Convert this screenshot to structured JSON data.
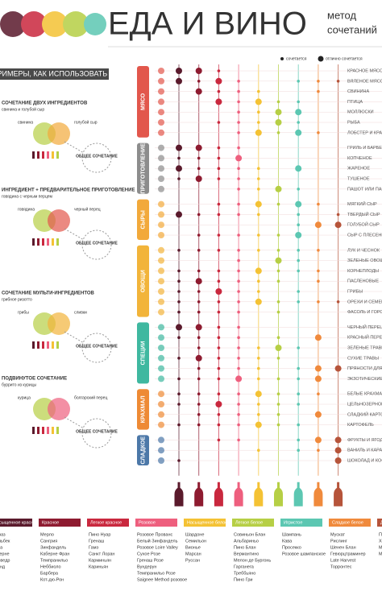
{
  "header": {
    "title": "ЕДА И ВИНО",
    "subtitle_line1": "метод",
    "subtitle_line2": "сочетаний"
  },
  "legend": {
    "pairs": "сочетается",
    "excellent": "отлично сочетается"
  },
  "examples_header": "ПРИМЕРЫ, КАК ИСПОЛЬЗОВАТЬ",
  "examples": [
    {
      "title": "СОЧЕТАНИЕ ДВУХ ИНГРЕДИЕНТОВ",
      "subtitle": "свинина и голубой сыр",
      "left": "свинина",
      "right": "голубой сыр",
      "result": "ОБЩЕЕ СОЧЕТАНИЕ"
    },
    {
      "title": "ИНГРЕДИЕНТ + ПРЕДВАРИТЕЛЬНОЕ ПРИГОТОВЛЕНИЕ",
      "subtitle": "говядина с черным перцем",
      "left": "говядина",
      "right": "черный перец",
      "result": "ОБЩЕЕ СОЧЕТАНИЕ"
    },
    {
      "title": "СОЧЕТАНИЕ МУЛЬТИ-ИНГРЕДИЕНТОВ",
      "subtitle": "грибное ризотто",
      "left": "грибы",
      "right": "сливки",
      "result": "ОБЩЕЕ СОЧЕТАНИЕ"
    },
    {
      "title": "ПОДВИНУТОЕ СОЧЕТАНИЕ",
      "subtitle": "буррито из курицы",
      "left": "курица",
      "right": "болгарский перец",
      "result": "ОБЩЕЕ СОЧЕТАНИЕ"
    }
  ],
  "groups": [
    {
      "name": "МЯСО",
      "color": "#e2574c",
      "rows": 7
    },
    {
      "name": "ПРИГОТОВЛЕНИЕ",
      "color": "#8c8c8c",
      "rows": 5
    },
    {
      "name": "СЫРЫ",
      "color": "#f2a93b",
      "rows": 4
    },
    {
      "name": "ОВОЩИ",
      "color": "#f2b43a",
      "rows": 7
    },
    {
      "name": "СПЕЦИИ",
      "color": "#3fb8a0",
      "rows": 6
    },
    {
      "name": "КРАХМАЛ",
      "color": "#ee8a35",
      "rows": 4
    },
    {
      "name": "СЛАДКОЕ",
      "color": "#4c78a8",
      "rows": 3
    }
  ],
  "foods": [
    "КРАСНОЕ МЯСО",
    "ВЯЛЕНОЕ МЯСО",
    "СВИНИНА",
    "ПТИЦА",
    "МОЛЛЮСКИ",
    "РЫБА",
    "ЛОБСТЕР И КРАБ",
    "ГРИЛЬ И БАРБЕКЮ",
    "КОПЧЕНОЕ",
    "ЖАРЕНОЕ",
    "ТУШЕНОЕ",
    "ПАШОТ ИЛИ ПАР",
    "МЯГКИЙ СЫР",
    "ТВЕРДЫЙ СЫР",
    "ГОЛУБОЙ СЫР",
    "СЫР С ПЛЕСЕНЬЮ",
    "ЛУК И ЧЕСНОК",
    "ЗЕЛЕНЫЕ ОВОЩИ",
    "КОРНЕПЛОДЫ",
    "ПАСЛЕНОВЫЕ",
    "ГРИБЫ",
    "ОРЕХИ И СЕМЕНА",
    "ФАСОЛЬ И ГОРОХ",
    "ЧЕРНЫЙ ПЕРЕЦ",
    "КРАСНЫЙ ПЕРЕЦ",
    "ЗЕЛЕНЫЕ ТРАВЫ",
    "СУХИЕ ТРАВЫ",
    "ПРЯНОСТИ ДЛЯ ВЫПЕЧКИ",
    "ЭКЗОТИЧЕСКИЕ ПРЯНОСТИ",
    "БЕЛЫЕ КРАХМАЛЫ",
    "ЦЕЛЬНОЗЕРНОВЫЕ",
    "СЛАДКИЙ КАРТОФЕЛЬ",
    "КАРТОФЕЛЬ",
    "ФРУКТЫ И ЯГОДЫ",
    "ВАНИЛЬ И КАРАМЕЛЬ",
    "ШОКОЛАД И КОФЕ"
  ],
  "matrix": [
    [
      2,
      2,
      1,
      0,
      0,
      0,
      0,
      0,
      0
    ],
    [
      2,
      1,
      2,
      1,
      0,
      0,
      1,
      1,
      1
    ],
    [
      0,
      2,
      1,
      1,
      1,
      0,
      0,
      1,
      0
    ],
    [
      0,
      0,
      2,
      1,
      2,
      1,
      1,
      0,
      0
    ],
    [
      0,
      0,
      0,
      1,
      1,
      2,
      2,
      0,
      0
    ],
    [
      0,
      0,
      1,
      1,
      1,
      2,
      1,
      0,
      0
    ],
    [
      0,
      0,
      0,
      1,
      2,
      1,
      2,
      1,
      0
    ],
    [
      2,
      2,
      1,
      1,
      0,
      0,
      0,
      0,
      0
    ],
    [
      1,
      1,
      1,
      2,
      0,
      0,
      0,
      0,
      0
    ],
    [
      2,
      1,
      1,
      1,
      1,
      0,
      2,
      0,
      0
    ],
    [
      1,
      2,
      1,
      1,
      1,
      0,
      0,
      0,
      0
    ],
    [
      0,
      0,
      0,
      1,
      1,
      2,
      1,
      0,
      0
    ],
    [
      0,
      0,
      1,
      1,
      2,
      1,
      2,
      1,
      0
    ],
    [
      2,
      1,
      1,
      1,
      1,
      0,
      1,
      0,
      1
    ],
    [
      0,
      0,
      0,
      0,
      0,
      0,
      1,
      2,
      2
    ],
    [
      0,
      1,
      1,
      1,
      1,
      1,
      2,
      0,
      0
    ],
    [
      1,
      1,
      1,
      1,
      1,
      1,
      1,
      1,
      0
    ],
    [
      0,
      0,
      0,
      1,
      0,
      2,
      1,
      0,
      0
    ],
    [
      1,
      1,
      1,
      1,
      2,
      1,
      1,
      1,
      0
    ],
    [
      1,
      2,
      1,
      1,
      1,
      1,
      0,
      1,
      0
    ],
    [
      1,
      1,
      2,
      1,
      1,
      0,
      1,
      0,
      0
    ],
    [
      1,
      1,
      1,
      1,
      2,
      1,
      1,
      1,
      1
    ],
    [
      1,
      1,
      1,
      1,
      0,
      1,
      0,
      0,
      0
    ],
    [
      2,
      2,
      1,
      1,
      0,
      0,
      0,
      0,
      0
    ],
    [
      1,
      1,
      1,
      1,
      0,
      1,
      0,
      2,
      0
    ],
    [
      0,
      1,
      1,
      1,
      1,
      2,
      1,
      0,
      0
    ],
    [
      1,
      2,
      1,
      1,
      1,
      1,
      0,
      0,
      0
    ],
    [
      0,
      1,
      1,
      1,
      1,
      0,
      1,
      2,
      2
    ],
    [
      1,
      1,
      1,
      2,
      1,
      1,
      1,
      2,
      0
    ],
    [
      1,
      1,
      1,
      1,
      2,
      1,
      1,
      1,
      0
    ],
    [
      1,
      1,
      2,
      1,
      1,
      1,
      1,
      0,
      0
    ],
    [
      0,
      1,
      1,
      1,
      1,
      1,
      0,
      2,
      0
    ],
    [
      1,
      1,
      1,
      1,
      2,
      1,
      1,
      0,
      0
    ],
    [
      0,
      0,
      1,
      1,
      0,
      0,
      1,
      2,
      2
    ],
    [
      0,
      0,
      0,
      0,
      1,
      0,
      1,
      1,
      2
    ],
    [
      1,
      0,
      0,
      0,
      0,
      0,
      0,
      0,
      2
    ]
  ],
  "wines": [
    {
      "name": "Насыщенное красное",
      "color": "#5a1a2c",
      "grapes": [
        "Шираз",
        "Мальбек",
        "Сира",
        "Каберне",
        "Мурведр",
        "Бланд"
      ]
    },
    {
      "name": "Красное",
      "color": "#8e1b30",
      "grapes": [
        "Мерло",
        "Сангрия",
        "Зинфандель",
        "Каберне Фран",
        "Темпранильо",
        "Неббиоло",
        "Барбера",
        "Кот-дю-Рон"
      ]
    },
    {
      "name": "Легкое красное",
      "color": "#c9283e",
      "grapes": [
        "Пино Нуар",
        "Гренаш",
        "Гамэ",
        "Санкт Лоран",
        "Карминьян",
        "Кариньян"
      ]
    },
    {
      "name": "Розовое",
      "color": "#ee5f7e",
      "grapes": [
        "Розовое Прованс",
        "Белый Зинфандель",
        "Розовое Loire Valley",
        "Сухое Розе",
        "Гренаш Розе",
        "Вундерун",
        "Темпранильо Розе",
        "Saignee Method розовое"
      ]
    },
    {
      "name": "Насыщенное белое",
      "color": "#f4c234",
      "grapes": [
        "Шардоне",
        "Семильон",
        "Вионье",
        "Марсан",
        "Руссан"
      ]
    },
    {
      "name": "Легкое белое",
      "color": "#b6cf45",
      "grapes": [
        "Совиньон Блан",
        "Альбариньо",
        "Пино Блан",
        "Вермантино",
        "Мелон де Бургонь",
        "Гарганега",
        "Треббьяно",
        "Пино Гри"
      ]
    },
    {
      "name": "Игристое",
      "color": "#5cc7b2",
      "grapes": [
        "Шампань",
        "Кава",
        "Просекко",
        "Розовое шампанское"
      ]
    },
    {
      "name": "Сладкое белое",
      "color": "#f08a3c",
      "grapes": [
        "Мускат",
        "Рислинг",
        "Шенен Блан",
        "Гевюрцтраминер",
        "Late Harvest",
        "Торронтес"
      ]
    },
    {
      "name": "Десертное",
      "color": "#b6543a",
      "grapes": [
        "Портвейн",
        "Херес",
        "Мадера",
        "Марсала"
      ]
    }
  ]
}
